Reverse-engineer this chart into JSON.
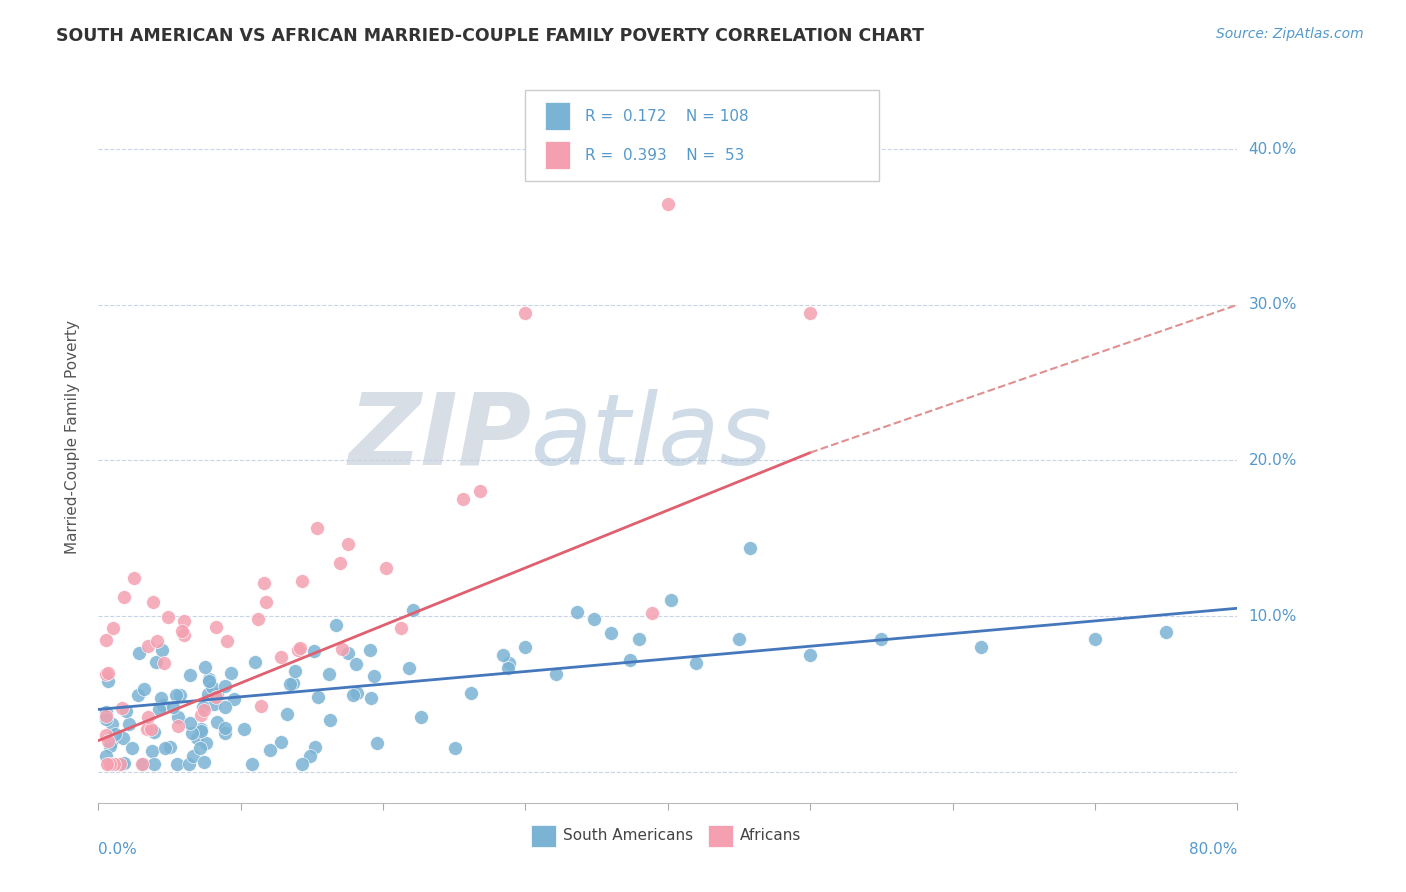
{
  "title": "SOUTH AMERICAN VS AFRICAN MARRIED-COUPLE FAMILY POVERTY CORRELATION CHART",
  "source": "Source: ZipAtlas.com",
  "ylabel": "Married-Couple Family Poverty",
  "xlim": [
    0.0,
    0.8
  ],
  "ylim": [
    -0.02,
    0.45
  ],
  "yticks": [
    0.0,
    0.1,
    0.2,
    0.3,
    0.4
  ],
  "ytick_labels": [
    "",
    "10.0%",
    "20.0%",
    "30.0%",
    "40.0%"
  ],
  "xticks": [
    0.0,
    0.1,
    0.2,
    0.3,
    0.4,
    0.5,
    0.6,
    0.7,
    0.8
  ],
  "blue_color": "#7ab3d4",
  "pink_color": "#f4a0b0",
  "background_color": "#ffffff",
  "grid_color": "#c8d4e8",
  "blue_trend_color": "#4477bb",
  "pink_trend_solid_color": "#e06070",
  "pink_trend_dash_color": "#e09090",
  "watermark_zip_color": "#c8d0dc",
  "watermark_atlas_color": "#a0b8d0"
}
